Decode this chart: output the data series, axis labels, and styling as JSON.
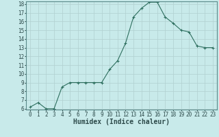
{
  "x": [
    0,
    1,
    2,
    3,
    4,
    5,
    6,
    7,
    8,
    9,
    10,
    11,
    12,
    13,
    14,
    15,
    16,
    17,
    18,
    19,
    20,
    21,
    22,
    23
  ],
  "y": [
    6.2,
    6.7,
    6.0,
    6.0,
    8.5,
    9.0,
    9.0,
    9.0,
    9.0,
    9.0,
    10.5,
    11.5,
    13.5,
    16.5,
    17.5,
    18.2,
    18.2,
    16.5,
    15.8,
    15.0,
    14.8,
    13.2,
    13.0,
    13.0
  ],
  "xlabel": "Humidex (Indice chaleur)",
  "ylim": [
    6,
    18
  ],
  "xlim": [
    -0.5,
    23.5
  ],
  "yticks": [
    6,
    7,
    8,
    9,
    10,
    11,
    12,
    13,
    14,
    15,
    16,
    17,
    18
  ],
  "xticks": [
    0,
    1,
    2,
    3,
    4,
    5,
    6,
    7,
    8,
    9,
    10,
    11,
    12,
    13,
    14,
    15,
    16,
    17,
    18,
    19,
    20,
    21,
    22,
    23
  ],
  "line_color": "#2d6e5e",
  "marker": "+",
  "bg_color": "#c8eaea",
  "grid_color": "#b0d0d0",
  "xlabel_fontsize": 7,
  "tick_fontsize": 5.5
}
